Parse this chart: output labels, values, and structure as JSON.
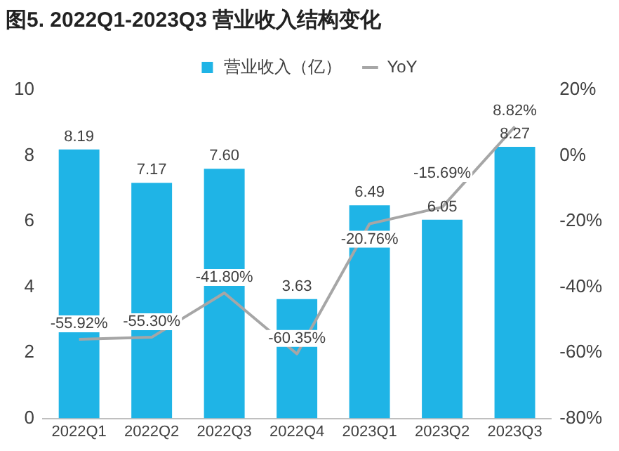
{
  "chart_data": {
    "type": "bar",
    "title": "图5. 2022Q1-2023Q3 营业收入结构变化",
    "categories": [
      "2022Q1",
      "2022Q2",
      "2022Q3",
      "2022Q4",
      "2023Q1",
      "2023Q2",
      "2023Q3"
    ],
    "series": [
      {
        "name": "营业收入（亿）",
        "color": "#1fb4e6",
        "values": [
          8.19,
          7.17,
          7.6,
          3.63,
          6.49,
          6.05,
          8.27
        ],
        "value_labels": [
          "8.19",
          "7.17",
          "7.60",
          "3.63",
          "6.49",
          "6.05",
          "8.27"
        ]
      },
      {
        "name": "YoY",
        "type": "line",
        "axis": "y2",
        "color": "#a6a6a6",
        "marker": "none",
        "values": [
          -55.92,
          -55.3,
          -41.8,
          -60.35,
          -20.76,
          -15.69,
          8.82
        ],
        "value_labels": [
          "-55.92%",
          "-55.30%",
          "-41.80%",
          "-60.35%",
          "-20.76%",
          "-15.69%",
          "8.82%"
        ]
      }
    ],
    "ylim": [
      0,
      10
    ],
    "yticks": [
      0,
      2,
      4,
      6,
      8,
      10
    ],
    "y2lim": [
      -80,
      20
    ],
    "y2ticks": [
      {
        "value": -80,
        "label": "-80%"
      },
      {
        "value": -60,
        "label": "-60%"
      },
      {
        "value": -40,
        "label": "-40%"
      },
      {
        "value": -20,
        "label": "-20%"
      },
      {
        "value": 0,
        "label": "0%"
      },
      {
        "value": 20,
        "label": "20%"
      }
    ],
    "grid": false,
    "legend": "top"
  }
}
